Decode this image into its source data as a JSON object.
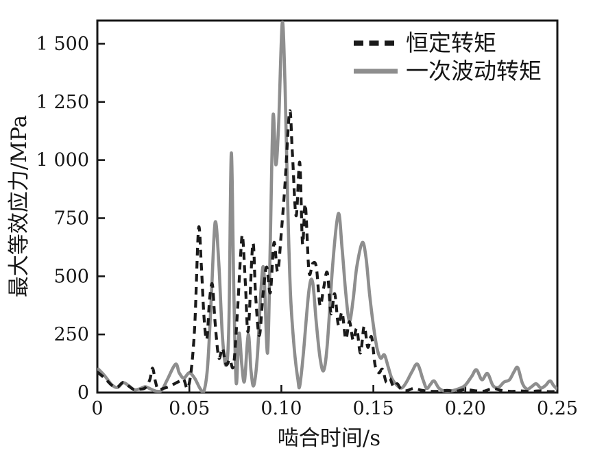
{
  "figure": {
    "background": "#ffffff",
    "axis_color": "#161616"
  },
  "chart_data": {
    "type": "line",
    "title": "",
    "xlabel": "啮合时间/s",
    "ylabel": "最大等效应力/MPa",
    "xlim": [
      0,
      0.25
    ],
    "ylim": [
      0,
      1600
    ],
    "grid": false,
    "legend_position": "top-right-inside",
    "x_ticks": [
      0,
      0.05,
      0.1,
      0.15,
      0.2,
      0.25
    ],
    "x_tick_labels": [
      "0",
      "0.05",
      "0.10",
      "0.15",
      "0.20",
      "0.25"
    ],
    "y_ticks": [
      0,
      250,
      500,
      750,
      1000,
      1250,
      1500
    ],
    "y_tick_labels": [
      "0",
      "250",
      "500",
      "750",
      "1 000",
      "1 250",
      "1 500"
    ],
    "series": [
      {
        "name": "恒定转矩",
        "style": "dashed",
        "color": "#1a1a1a",
        "stroke_width": 4.2,
        "dash": "11 8",
        "points": [
          [
            0.0,
            88
          ],
          [
            0.004,
            62
          ],
          [
            0.008,
            30
          ],
          [
            0.011,
            24
          ],
          [
            0.014,
            44
          ],
          [
            0.017,
            28
          ],
          [
            0.02,
            12
          ],
          [
            0.023,
            14
          ],
          [
            0.026,
            20
          ],
          [
            0.0285,
            55
          ],
          [
            0.03,
            105
          ],
          [
            0.0315,
            50
          ],
          [
            0.033,
            14
          ],
          [
            0.036,
            18
          ],
          [
            0.039,
            26
          ],
          [
            0.042,
            38
          ],
          [
            0.045,
            50
          ],
          [
            0.047,
            56
          ],
          [
            0.049,
            18
          ],
          [
            0.051,
            95
          ],
          [
            0.053,
            300
          ],
          [
            0.055,
            705
          ],
          [
            0.0565,
            550
          ],
          [
            0.058,
            320
          ],
          [
            0.0595,
            230
          ],
          [
            0.061,
            400
          ],
          [
            0.0625,
            465
          ],
          [
            0.064,
            300
          ],
          [
            0.066,
            150
          ],
          [
            0.068,
            190
          ],
          [
            0.07,
            120
          ],
          [
            0.072,
            142
          ],
          [
            0.074,
            115
          ],
          [
            0.076,
            330
          ],
          [
            0.078,
            610
          ],
          [
            0.079,
            668
          ],
          [
            0.0805,
            460
          ],
          [
            0.082,
            265
          ],
          [
            0.0845,
            640
          ],
          [
            0.086,
            420
          ],
          [
            0.088,
            245
          ],
          [
            0.09,
            420
          ],
          [
            0.092,
            540
          ],
          [
            0.094,
            430
          ],
          [
            0.096,
            645
          ],
          [
            0.098,
            520
          ],
          [
            0.1,
            690
          ],
          [
            0.102,
            900
          ],
          [
            0.1045,
            1210
          ],
          [
            0.106,
            1030
          ],
          [
            0.108,
            760
          ],
          [
            0.11,
            990
          ],
          [
            0.1115,
            640
          ],
          [
            0.113,
            810
          ],
          [
            0.115,
            520
          ],
          [
            0.117,
            555
          ],
          [
            0.119,
            540
          ],
          [
            0.121,
            375
          ],
          [
            0.123,
            450
          ],
          [
            0.125,
            515
          ],
          [
            0.127,
            340
          ],
          [
            0.129,
            425
          ],
          [
            0.131,
            290
          ],
          [
            0.133,
            345
          ],
          [
            0.135,
            230
          ],
          [
            0.137,
            305
          ],
          [
            0.139,
            225
          ],
          [
            0.141,
            275
          ],
          [
            0.143,
            170
          ],
          [
            0.145,
            285
          ],
          [
            0.147,
            195
          ],
          [
            0.149,
            240
          ],
          [
            0.151,
            115
          ],
          [
            0.153,
            85
          ],
          [
            0.155,
            100
          ],
          [
            0.157,
            45
          ],
          [
            0.159,
            60
          ],
          [
            0.161,
            24
          ],
          [
            0.163,
            38
          ],
          [
            0.165,
            15
          ],
          [
            0.168,
            8
          ],
          [
            0.172,
            18
          ],
          [
            0.176,
            10
          ],
          [
            0.18,
            6
          ],
          [
            0.185,
            5
          ],
          [
            0.19,
            9
          ],
          [
            0.195,
            6
          ],
          [
            0.2,
            13
          ],
          [
            0.205,
            8
          ],
          [
            0.21,
            6
          ],
          [
            0.215,
            18
          ],
          [
            0.219,
            10
          ],
          [
            0.225,
            5
          ],
          [
            0.23,
            7
          ],
          [
            0.235,
            4
          ],
          [
            0.24,
            7
          ],
          [
            0.245,
            4
          ],
          [
            0.25,
            4
          ]
        ]
      },
      {
        "name": "一次波动转矩",
        "style": "solid",
        "color": "#8e8e8e",
        "stroke_width": 4.6,
        "dash": "",
        "points": [
          [
            0.0,
            105
          ],
          [
            0.004,
            72
          ],
          [
            0.008,
            32
          ],
          [
            0.011,
            22
          ],
          [
            0.014,
            42
          ],
          [
            0.017,
            30
          ],
          [
            0.02,
            12
          ],
          [
            0.023,
            16
          ],
          [
            0.026,
            25
          ],
          [
            0.029,
            15
          ],
          [
            0.032,
            6
          ],
          [
            0.035,
            10
          ],
          [
            0.038,
            55
          ],
          [
            0.0425,
            122
          ],
          [
            0.0445,
            85
          ],
          [
            0.047,
            62
          ],
          [
            0.05,
            85
          ],
          [
            0.053,
            60
          ],
          [
            0.056,
            15
          ],
          [
            0.058,
            8
          ],
          [
            0.06,
            120
          ],
          [
            0.062,
            420
          ],
          [
            0.064,
            732
          ],
          [
            0.066,
            560
          ],
          [
            0.068,
            240
          ],
          [
            0.07,
            118
          ],
          [
            0.0715,
            300
          ],
          [
            0.0728,
            1030
          ],
          [
            0.0742,
            420
          ],
          [
            0.0755,
            40
          ],
          [
            0.077,
            255
          ],
          [
            0.0785,
            120
          ],
          [
            0.08,
            50
          ],
          [
            0.082,
            250
          ],
          [
            0.0835,
            95
          ],
          [
            0.085,
            30
          ],
          [
            0.087,
            160
          ],
          [
            0.089,
            450
          ],
          [
            0.0905,
            525
          ],
          [
            0.0925,
            170
          ],
          [
            0.094,
            650
          ],
          [
            0.0955,
            1190
          ],
          [
            0.097,
            980
          ],
          [
            0.0985,
            1150
          ],
          [
            0.1005,
            1590
          ],
          [
            0.102,
            1320
          ],
          [
            0.1035,
            800
          ],
          [
            0.105,
            420
          ],
          [
            0.107,
            190
          ],
          [
            0.109,
            55
          ],
          [
            0.11,
            28
          ],
          [
            0.112,
            170
          ],
          [
            0.115,
            440
          ],
          [
            0.117,
            475
          ],
          [
            0.119,
            300
          ],
          [
            0.121,
            150
          ],
          [
            0.123,
            95
          ],
          [
            0.125,
            210
          ],
          [
            0.128,
            560
          ],
          [
            0.131,
            770
          ],
          [
            0.133,
            620
          ],
          [
            0.135,
            430
          ],
          [
            0.137,
            308
          ],
          [
            0.139,
            400
          ],
          [
            0.141,
            540
          ],
          [
            0.144,
            645
          ],
          [
            0.146,
            580
          ],
          [
            0.148,
            420
          ],
          [
            0.15,
            290
          ],
          [
            0.152,
            190
          ],
          [
            0.154,
            148
          ],
          [
            0.156,
            162
          ],
          [
            0.158,
            112
          ],
          [
            0.16,
            62
          ],
          [
            0.163,
            30
          ],
          [
            0.1655,
            20
          ],
          [
            0.168,
            45
          ],
          [
            0.171,
            90
          ],
          [
            0.174,
            122
          ],
          [
            0.177,
            55
          ],
          [
            0.179,
            18
          ],
          [
            0.181,
            35
          ],
          [
            0.183,
            50
          ],
          [
            0.1855,
            20
          ],
          [
            0.188,
            8
          ],
          [
            0.191,
            6
          ],
          [
            0.194,
            10
          ],
          [
            0.197,
            18
          ],
          [
            0.2,
            32
          ],
          [
            0.2035,
            70
          ],
          [
            0.206,
            98
          ],
          [
            0.209,
            55
          ],
          [
            0.212,
            82
          ],
          [
            0.215,
            30
          ],
          [
            0.218,
            22
          ],
          [
            0.221,
            45
          ],
          [
            0.224,
            55
          ],
          [
            0.2265,
            90
          ],
          [
            0.2285,
            107
          ],
          [
            0.231,
            40
          ],
          [
            0.2335,
            15
          ],
          [
            0.236,
            25
          ],
          [
            0.2385,
            38
          ],
          [
            0.241,
            20
          ],
          [
            0.2435,
            30
          ],
          [
            0.246,
            50
          ],
          [
            0.248,
            30
          ],
          [
            0.25,
            14
          ]
        ]
      }
    ]
  }
}
